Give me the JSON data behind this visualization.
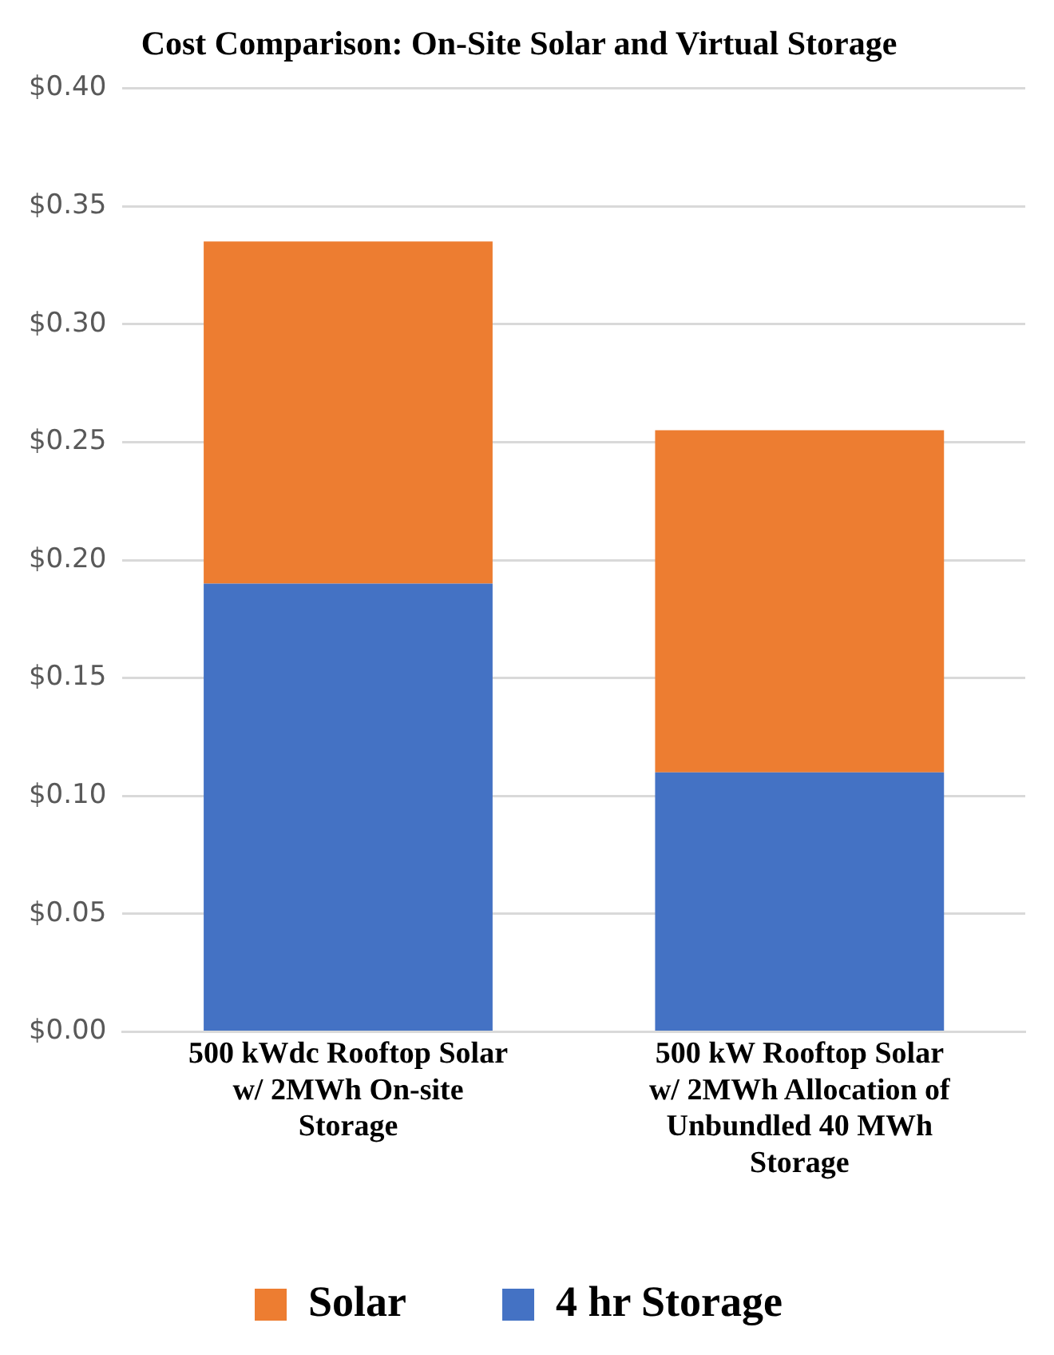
{
  "chart_data": {
    "type": "bar",
    "title": "Cost Comparison: On-Site Solar and Virtual Storage",
    "categories": [
      "500 kWdc Rooftop Solar w/ 2MWh On-site Storage",
      "500 kW Rooftop Solar w/ 2MWh Allocation of Unbundled 40 MWh Storage"
    ],
    "series": [
      {
        "name": "4 hr Storage",
        "color": "#4472c4",
        "values": [
          0.19,
          0.11
        ]
      },
      {
        "name": "Solar",
        "color": "#ed7d31",
        "values": [
          0.145,
          0.145
        ]
      }
    ],
    "stacked": true,
    "ylim": [
      0,
      0.4
    ],
    "yticks": [
      {
        "value": 0,
        "label": "$0.00"
      },
      {
        "value": 0.05,
        "label": "$0.05"
      },
      {
        "value": 0.1,
        "label": "$0.10"
      },
      {
        "value": 0.15,
        "label": "$0.15"
      },
      {
        "value": 0.2,
        "label": "$0.20"
      },
      {
        "value": 0.25,
        "label": "$0.25"
      },
      {
        "value": 0.3,
        "label": "$0.30"
      },
      {
        "value": 0.35,
        "label": "$0.35"
      },
      {
        "value": 0.4,
        "label": "$0.40"
      }
    ],
    "grid": "y",
    "legend": "bottom"
  }
}
